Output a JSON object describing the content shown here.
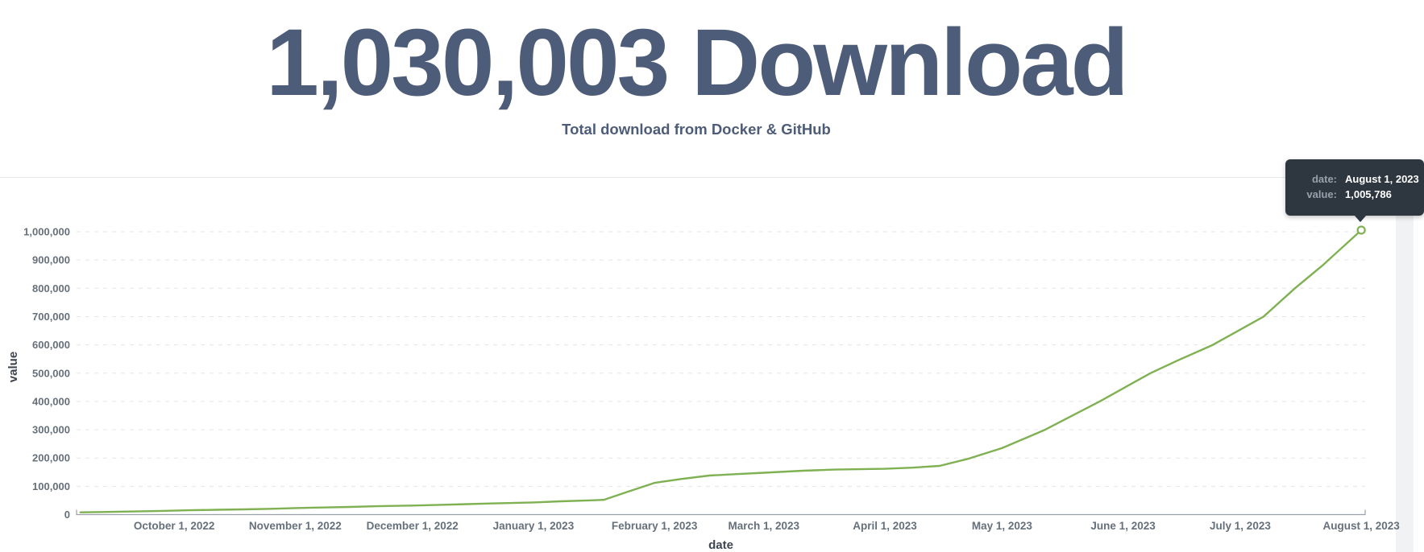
{
  "header": {
    "title": "1,030,003 Download",
    "subtitle": "Total download from Docker & GitHub",
    "text_color": "#4d5c78"
  },
  "tooltip": {
    "rows": [
      {
        "label": "date:",
        "value": "August 1, 2023"
      },
      {
        "label": "value:",
        "value": "1,005,786"
      }
    ],
    "background": "#2e3640",
    "label_color": "#97a1ab",
    "value_color": "#ffffff"
  },
  "colors": {
    "axis_text": "#66707b",
    "axis_title": "#3e454e",
    "grid": "#e3e5e8",
    "domain": "#9aa1a8",
    "line": "#7fb153",
    "marker_fill": "#ffffff"
  },
  "chart_data": {
    "type": "line",
    "title": "",
    "xlabel": "date",
    "ylabel": "value",
    "xlim": [
      "2022-09-06",
      "2023-08-02"
    ],
    "ylim": [
      0,
      1100000
    ],
    "grid": "horizontal-dashed",
    "legend": "none",
    "x_ticks": [
      {
        "date": "2022-10-01",
        "label": "October 1, 2022"
      },
      {
        "date": "2022-11-01",
        "label": "November 1, 2022"
      },
      {
        "date": "2022-12-01",
        "label": "December 1, 2022"
      },
      {
        "date": "2023-01-01",
        "label": "January 1, 2023"
      },
      {
        "date": "2023-02-01",
        "label": "February 1, 2023"
      },
      {
        "date": "2023-03-01",
        "label": "March 1, 2023"
      },
      {
        "date": "2023-04-01",
        "label": "April 1, 2023"
      },
      {
        "date": "2023-05-01",
        "label": "May 1, 2023"
      },
      {
        "date": "2023-06-01",
        "label": "June 1, 2023"
      },
      {
        "date": "2023-07-01",
        "label": "July 1, 2023"
      },
      {
        "date": "2023-08-01",
        "label": "August 1, 2023"
      }
    ],
    "y_ticks": [
      {
        "value": 0,
        "label": "0"
      },
      {
        "value": 100000,
        "label": "100,000"
      },
      {
        "value": 200000,
        "label": "200,000"
      },
      {
        "value": 300000,
        "label": "300,000"
      },
      {
        "value": 400000,
        "label": "400,000"
      },
      {
        "value": 500000,
        "label": "500,000"
      },
      {
        "value": 600000,
        "label": "600,000"
      },
      {
        "value": 700000,
        "label": "700,000"
      },
      {
        "value": 800000,
        "label": "800,000"
      },
      {
        "value": 900000,
        "label": "900,000"
      },
      {
        "value": 1000000,
        "label": "1,000,000"
      }
    ],
    "series": [
      {
        "name": "value",
        "color": "#7fb153",
        "points": [
          [
            "2022-09-07",
            8000
          ],
          [
            "2022-09-14",
            9500
          ],
          [
            "2022-09-21",
            11000
          ],
          [
            "2022-09-28",
            13000
          ],
          [
            "2022-10-05",
            15500
          ],
          [
            "2022-10-12",
            17000
          ],
          [
            "2022-10-19",
            18500
          ],
          [
            "2022-10-26",
            20500
          ],
          [
            "2022-11-01",
            23000
          ],
          [
            "2022-11-08",
            25000
          ],
          [
            "2022-11-15",
            27000
          ],
          [
            "2022-11-22",
            29500
          ],
          [
            "2022-12-01",
            32000
          ],
          [
            "2022-12-08",
            34500
          ],
          [
            "2022-12-15",
            37000
          ],
          [
            "2022-12-22",
            39500
          ],
          [
            "2023-01-01",
            43000
          ],
          [
            "2023-01-08",
            47000
          ],
          [
            "2023-01-15",
            50000
          ],
          [
            "2023-01-19",
            52000
          ],
          [
            "2023-01-25",
            80000
          ],
          [
            "2023-02-01",
            112000
          ],
          [
            "2023-02-08",
            126000
          ],
          [
            "2023-02-15",
            138000
          ],
          [
            "2023-02-22",
            143000
          ],
          [
            "2023-03-01",
            148000
          ],
          [
            "2023-03-11",
            155000
          ],
          [
            "2023-03-19",
            159000
          ],
          [
            "2023-04-01",
            162000
          ],
          [
            "2023-04-08",
            166000
          ],
          [
            "2023-04-15",
            172000
          ],
          [
            "2023-04-22",
            196000
          ],
          [
            "2023-05-01",
            235000
          ],
          [
            "2023-05-12",
            300000
          ],
          [
            "2023-05-26",
            400000
          ],
          [
            "2023-06-08",
            500000
          ],
          [
            "2023-06-15",
            545000
          ],
          [
            "2023-06-24",
            600000
          ],
          [
            "2023-07-07",
            700000
          ],
          [
            "2023-07-15",
            800000
          ],
          [
            "2023-07-22",
            880000
          ],
          [
            "2023-08-01",
            1005786
          ]
        ]
      }
    ],
    "hover_point": {
      "date": "2023-08-01",
      "value": 1005786
    }
  }
}
